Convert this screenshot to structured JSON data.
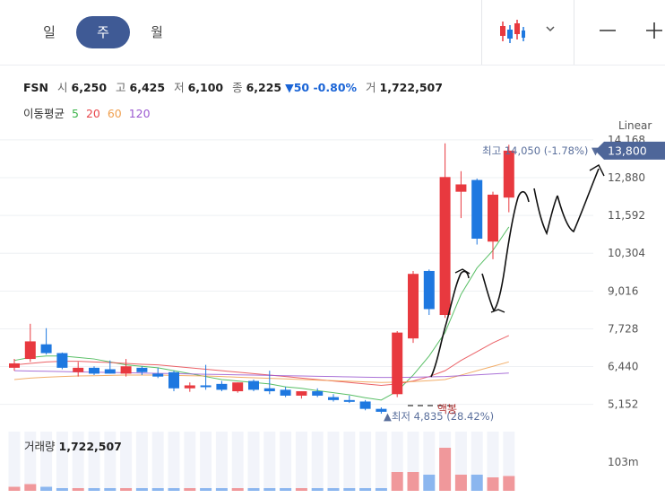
{
  "toolbar": {
    "periods": [
      {
        "label": "일",
        "active": false
      },
      {
        "label": "주",
        "active": true
      },
      {
        "label": "월",
        "active": false
      }
    ],
    "chart_type_icon": "candlestick-icon",
    "dropdown_icon": "chevron-down-icon",
    "zoom_out_icon": "minus-icon",
    "zoom_in_icon": "plus-icon"
  },
  "quote": {
    "symbol": "FSN",
    "open_label": "시",
    "open": "6,250",
    "high_label": "고",
    "high": "6,425",
    "low_label": "저",
    "low": "6,100",
    "close_label": "종",
    "close": "6,225",
    "change": "▼50 -0.80%",
    "volume_label": "거",
    "volume": "1,722,507"
  },
  "moving_average": {
    "label": "이동평균",
    "periods": [
      {
        "label": "5",
        "color": "#3cb44b"
      },
      {
        "label": "20",
        "color": "#e8474c"
      },
      {
        "label": "60",
        "color": "#f0a050"
      },
      {
        "label": "120",
        "color": "#9b59d0"
      }
    ]
  },
  "scale_label": "Linear",
  "volume_panel": {
    "label": "거래량",
    "value": "1,722,507",
    "axis_label": "103m"
  },
  "annotations": {
    "max_text": "최고 14,050 (-1.78%) ▼",
    "min_text": "▲최저 4,835 (",
    "min_suffix": "28.42%)",
    "handwritten": "액봉"
  },
  "colors": {
    "up": "#e8393f",
    "down": "#1e78e0",
    "price_tag": "#4e6699",
    "active_tab": "#3f5a95"
  },
  "chart_data": {
    "type": "candlestick",
    "title": "",
    "xlabel": "",
    "ylabel": "",
    "ylim": [
      4500,
      14500
    ],
    "yticks": [
      5152,
      6440,
      7728,
      9016,
      10304,
      11592,
      12880,
      14168
    ],
    "ytick_labels": [
      "5,152",
      "6,440",
      "7,728",
      "9,016",
      "10,304",
      "11,592",
      "12,880",
      "14,168"
    ],
    "current_price": 13800,
    "current_price_label": "13,800",
    "candles": [
      {
        "o": 6400,
        "h": 6700,
        "l": 6300,
        "c": 6550
      },
      {
        "o": 6700,
        "h": 7900,
        "l": 6600,
        "c": 7300
      },
      {
        "o": 7200,
        "h": 7750,
        "l": 6850,
        "c": 6900
      },
      {
        "o": 6900,
        "h": 6920,
        "l": 6350,
        "c": 6400
      },
      {
        "o": 6250,
        "h": 6600,
        "l": 6100,
        "c": 6400
      },
      {
        "o": 6400,
        "h": 6450,
        "l": 6150,
        "c": 6200
      },
      {
        "o": 6350,
        "h": 6650,
        "l": 6200,
        "c": 6200
      },
      {
        "o": 6200,
        "h": 6700,
        "l": 6100,
        "c": 6450
      },
      {
        "o": 6400,
        "h": 6450,
        "l": 6150,
        "c": 6250
      },
      {
        "o": 6200,
        "h": 6400,
        "l": 6050,
        "c": 6100
      },
      {
        "o": 6250,
        "h": 6300,
        "l": 5600,
        "c": 5700
      },
      {
        "o": 5700,
        "h": 5900,
        "l": 5580,
        "c": 5800
      },
      {
        "o": 5800,
        "h": 6500,
        "l": 5650,
        "c": 5750
      },
      {
        "o": 5850,
        "h": 5950,
        "l": 5600,
        "c": 5650
      },
      {
        "o": 5600,
        "h": 5900,
        "l": 5550,
        "c": 5900
      },
      {
        "o": 5950,
        "h": 6000,
        "l": 5600,
        "c": 5650
      },
      {
        "o": 5700,
        "h": 6300,
        "l": 5500,
        "c": 5600
      },
      {
        "o": 5650,
        "h": 5750,
        "l": 5400,
        "c": 5450
      },
      {
        "o": 5450,
        "h": 5600,
        "l": 5350,
        "c": 5600
      },
      {
        "o": 5600,
        "h": 5700,
        "l": 5400,
        "c": 5450
      },
      {
        "o": 5400,
        "h": 5500,
        "l": 5250,
        "c": 5300
      },
      {
        "o": 5300,
        "h": 5450,
        "l": 5200,
        "c": 5250
      },
      {
        "o": 5250,
        "h": 5300,
        "l": 4950,
        "c": 5000
      },
      {
        "o": 5000,
        "h": 5050,
        "l": 4835,
        "c": 4900
      },
      {
        "o": 5500,
        "h": 7650,
        "l": 5400,
        "c": 7600
      },
      {
        "o": 7400,
        "h": 9700,
        "l": 7250,
        "c": 9600
      },
      {
        "o": 9700,
        "h": 9750,
        "l": 8200,
        "c": 8400
      },
      {
        "o": 8200,
        "h": 14050,
        "l": 8100,
        "c": 12900
      },
      {
        "o": 12400,
        "h": 13100,
        "l": 11500,
        "c": 12650
      },
      {
        "o": 12800,
        "h": 12850,
        "l": 10600,
        "c": 10800
      },
      {
        "o": 10700,
        "h": 12400,
        "l": 10100,
        "c": 12300
      },
      {
        "o": 12200,
        "h": 14000,
        "l": 11700,
        "c": 13800
      }
    ],
    "moving_averages": [
      {
        "name": "5",
        "color": "#3cb44b",
        "values": [
          6650,
          6750,
          6800,
          6800,
          6750,
          6700,
          6600,
          6500,
          6450,
          6400,
          6300,
          6200,
          6100,
          6000,
          5950,
          5900,
          5850,
          5750,
          5700,
          5620,
          5550,
          5480,
          5380,
          5300,
          5600,
          6150,
          6800,
          7600,
          8900,
          9800,
          10400,
          11200
        ]
      },
      {
        "name": "20",
        "color": "#e8474c",
        "values": [
          6500,
          6550,
          6600,
          6620,
          6620,
          6600,
          6580,
          6550,
          6520,
          6500,
          6450,
          6400,
          6350,
          6300,
          6250,
          6200,
          6150,
          6100,
          6050,
          6000,
          5950,
          5900,
          5850,
          5800,
          5850,
          5950,
          6100,
          6300,
          6650,
          6950,
          7250,
          7500
        ]
      },
      {
        "name": "60",
        "color": "#f0a050",
        "values": [
          6000,
          6050,
          6080,
          6100,
          6120,
          6130,
          6140,
          6150,
          6150,
          6150,
          6140,
          6130,
          6120,
          6100,
          6080,
          6060,
          6040,
          6020,
          6000,
          5980,
          5960,
          5940,
          5920,
          5900,
          5910,
          5930,
          5960,
          6000,
          6150,
          6300,
          6450,
          6600
        ]
      },
      {
        "name": "120",
        "color": "#9b59d0",
        "values": [
          6300,
          6290,
          6280,
          6270,
          6260,
          6250,
          6240,
          6230,
          6220,
          6210,
          6200,
          6190,
          6180,
          6170,
          6160,
          6150,
          6140,
          6130,
          6120,
          6110,
          6100,
          6090,
          6080,
          6070,
          6070,
          6080,
          6090,
          6100,
          6130,
          6160,
          6190,
          6220
        ]
      }
    ],
    "volume": [
      3,
      5,
      3,
      2,
      2,
      2,
      2,
      2,
      2,
      2,
      2,
      2,
      2,
      2,
      2,
      2,
      2,
      2,
      2,
      2,
      2,
      2,
      2,
      2,
      14,
      14,
      12,
      32,
      12,
      12,
      10,
      11
    ]
  }
}
